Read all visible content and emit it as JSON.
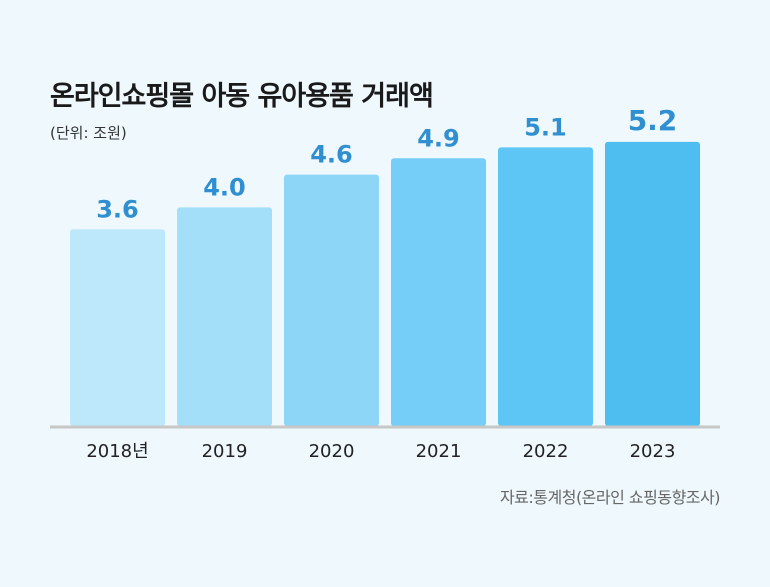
{
  "title": "온라인쇼핑몰 아동 유아용품 거래액",
  "unit": "(단위: 조원)",
  "source": "자료:통계청(온라인 쇼핑동향조사)",
  "chart_data": {
    "type": "bar",
    "title": "온라인쇼핑몰 아동 유아용품 거래액",
    "xlabel": "",
    "ylabel": "",
    "categories": [
      "2018년",
      "2019",
      "2020",
      "2021",
      "2022",
      "2023"
    ],
    "values": [
      3.6,
      4.0,
      4.6,
      4.9,
      5.1,
      5.2
    ],
    "value_labels": [
      "3.6",
      "4.0",
      "4.6",
      "4.9",
      "5.1",
      "5.2"
    ],
    "ylim": [
      0,
      5.6
    ],
    "grid": false,
    "colors": {
      "bars": [
        "#bde8fb",
        "#a4dffa",
        "#8dd6f8",
        "#75cef7",
        "#5ec6f5",
        "#4dbeef"
      ],
      "value_label": "#2f8fd0",
      "axis": "#c7c7c7",
      "tick_label": "#222222"
    }
  }
}
